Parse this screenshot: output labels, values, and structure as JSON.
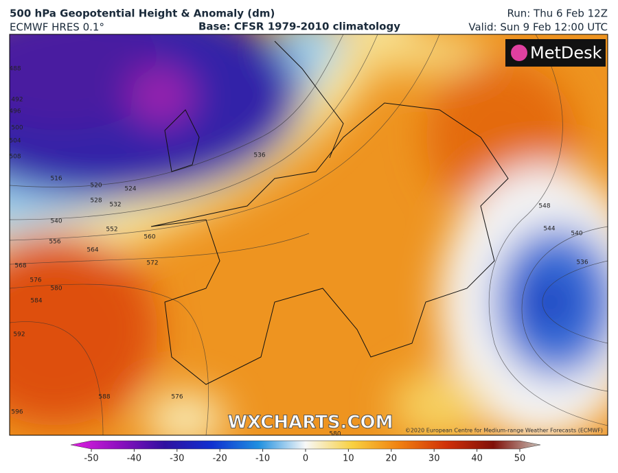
{
  "header": {
    "title": "500 hPa Geopotential Height & Anomaly (dm)",
    "model": "ECMWF HRES 0.1°",
    "base": "Base: CFSR 1979-2010 climatology",
    "run": "Run: Thu 6 Feb 12Z",
    "valid": "Valid: Sun 9 Feb 12:00 UTC"
  },
  "map": {
    "logo": "MetDesk",
    "watermark": "WXCHARTS.COM",
    "copyright": "©2020 European Centre for Medium-range Weather Forecasts (ECMWF)",
    "contour_labels": [
      488,
      492,
      496,
      500,
      504,
      508,
      516,
      520,
      524,
      528,
      532,
      536,
      540,
      552,
      556,
      560,
      564,
      568,
      572,
      576,
      580,
      584,
      592,
      588,
      576,
      596,
      548,
      544,
      540,
      536,
      580
    ]
  },
  "colorbar": {
    "lim": [
      -50,
      50
    ],
    "ticks": [
      -50,
      -40,
      -30,
      -20,
      -10,
      0,
      10,
      20,
      30,
      40,
      50
    ],
    "colors": [
      "#e020e0",
      "#9010c0",
      "#3010a0",
      "#1030d0",
      "#2090e0",
      "#f8f8f8",
      "#f8d040",
      "#f08010",
      "#d03008",
      "#801008",
      "#c8c0b8"
    ]
  }
}
